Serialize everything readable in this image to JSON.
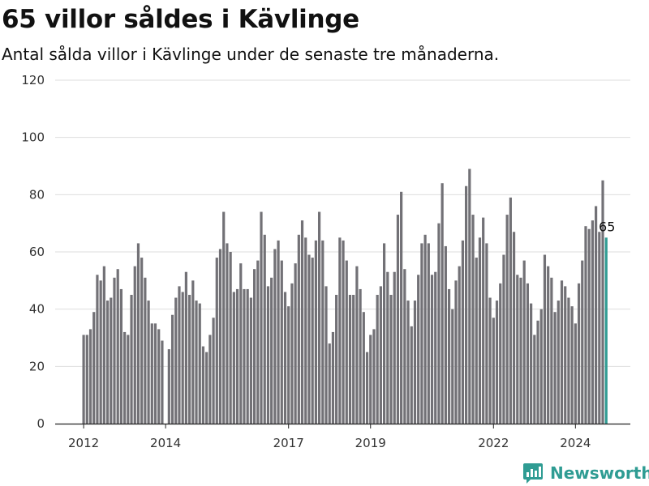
{
  "title": "65 villor såldes i Kävlinge",
  "subtitle": "Antal sålda villor i Kävlinge under de senaste tre månaderna.",
  "brand": {
    "name": "Newsworthy",
    "icon": "newsworthy-logo-icon",
    "color": "#2f9c93"
  },
  "chart_data": {
    "type": "bar",
    "title": "65 villor såldes i Kävlinge",
    "subtitle": "Antal sålda villor i Kävlinge under de senaste tre månaderna.",
    "xlabel": "",
    "ylabel": "",
    "ylim": [
      0,
      120
    ],
    "yticks": [
      0,
      20,
      40,
      60,
      80,
      100,
      120
    ],
    "xtick_labels": [
      {
        "label": "2012",
        "index": 0
      },
      {
        "label": "2014",
        "index": 24
      },
      {
        "label": "2017",
        "index": 60
      },
      {
        "label": "2019",
        "index": 84
      },
      {
        "label": "2022",
        "index": 120
      },
      {
        "label": "2024",
        "index": 144
      }
    ],
    "start_period": "2012-01",
    "grid": true,
    "bar_color": "#727176",
    "highlight_color": "#2f9c93",
    "highlight_label": "65",
    "values": [
      31,
      31,
      33,
      39,
      52,
      50,
      55,
      43,
      44,
      51,
      54,
      47,
      32,
      31,
      45,
      55,
      63,
      58,
      51,
      43,
      35,
      35,
      33,
      29,
      0,
      26,
      38,
      44,
      48,
      46,
      53,
      45,
      50,
      43,
      42,
      27,
      25,
      31,
      37,
      58,
      61,
      74,
      63,
      60,
      46,
      47,
      56,
      47,
      47,
      44,
      54,
      57,
      74,
      66,
      48,
      51,
      61,
      64,
      57,
      46,
      41,
      49,
      56,
      66,
      71,
      65,
      59,
      58,
      64,
      74,
      64,
      48,
      28,
      32,
      45,
      65,
      64,
      57,
      45,
      45,
      55,
      47,
      39,
      25,
      31,
      33,
      45,
      48,
      63,
      53,
      45,
      53,
      73,
      81,
      54,
      43,
      34,
      43,
      52,
      63,
      66,
      63,
      52,
      53,
      70,
      84,
      62,
      47,
      40,
      50,
      55,
      64,
      83,
      89,
      73,
      58,
      65,
      72,
      63,
      44,
      37,
      43,
      49,
      59,
      73,
      79,
      67,
      52,
      51,
      57,
      49,
      42,
      31,
      36,
      40,
      59,
      55,
      51,
      39,
      43,
      50,
      48,
      44,
      41,
      35,
      49,
      57,
      69,
      68,
      71,
      76,
      67,
      85,
      65
    ]
  }
}
